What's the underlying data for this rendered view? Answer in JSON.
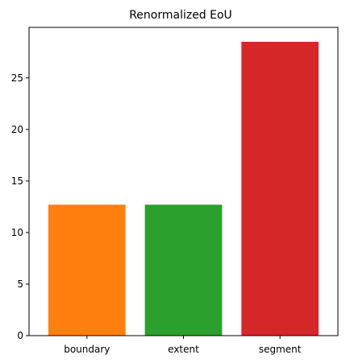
{
  "chart_data": {
    "type": "bar",
    "title": "Renormalized EoU",
    "xlabel": "",
    "ylabel": "",
    "categories": [
      "boundary",
      "extent",
      "segment"
    ],
    "values": [
      12.7,
      12.7,
      28.5
    ],
    "colors": [
      "#ff7f0e",
      "#2ca02c",
      "#d62728"
    ],
    "ylim": [
      0,
      29.9
    ],
    "yticks": [
      0,
      5,
      10,
      15,
      20,
      25
    ],
    "grid": false
  }
}
